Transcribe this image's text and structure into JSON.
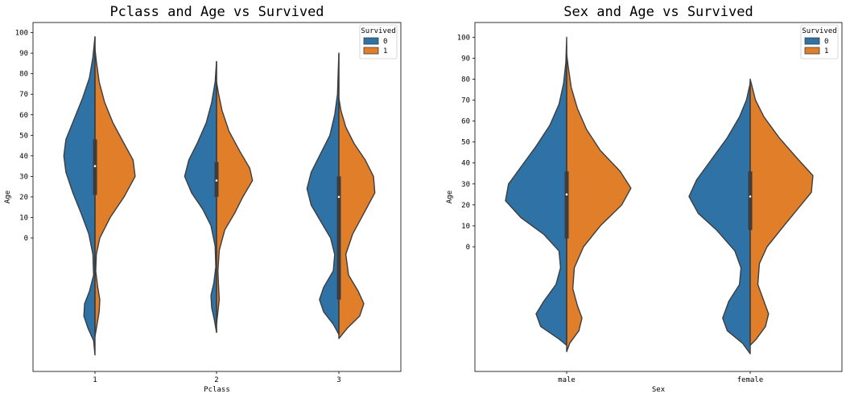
{
  "chart_data": [
    {
      "type": "violin",
      "title": "Pclass and Age  vs  Survived",
      "xlabel": "Pclass",
      "ylabel": "Age",
      "categories": [
        "1",
        "2",
        "3"
      ],
      "yticks": [
        0,
        10,
        20,
        30,
        40,
        50,
        60,
        70,
        80,
        90,
        100
      ],
      "ylim": [
        -65,
        102
      ],
      "split": true,
      "legend": {
        "title": "Survived",
        "entries": [
          "0",
          "1"
        ],
        "position": "top-right"
      },
      "series": [
        {
          "name": "0",
          "color": "#2f73a6",
          "violins": [
            {
              "points": [
                [
                  -57,
                  0.0
                ],
                [
                  -50,
                  0.02
                ],
                [
                  -44,
                  0.1
                ],
                [
                  -38,
                  0.16
                ],
                [
                  -32,
                  0.15
                ],
                [
                  -26,
                  0.08
                ],
                [
                  -18,
                  0.02
                ],
                [
                  -8,
                  0.03
                ],
                [
                  2,
                  0.09
                ],
                [
                  12,
                  0.2
                ],
                [
                  22,
                  0.32
                ],
                [
                  32,
                  0.42
                ],
                [
                  40,
                  0.45
                ],
                [
                  48,
                  0.42
                ],
                [
                  58,
                  0.3
                ],
                [
                  68,
                  0.18
                ],
                [
                  78,
                  0.08
                ],
                [
                  88,
                  0.03
                ],
                [
                  98,
                  0.0
                ]
              ]
            },
            {
              "points": [
                [
                  -46,
                  0.0
                ],
                [
                  -40,
                  0.03
                ],
                [
                  -34,
                  0.07
                ],
                [
                  -28,
                  0.08
                ],
                [
                  -22,
                  0.04
                ],
                [
                  -14,
                  0.01
                ],
                [
                  -4,
                  0.02
                ],
                [
                  6,
                  0.08
                ],
                [
                  14,
                  0.2
                ],
                [
                  22,
                  0.36
                ],
                [
                  30,
                  0.46
                ],
                [
                  38,
                  0.4
                ],
                [
                  46,
                  0.28
                ],
                [
                  56,
                  0.15
                ],
                [
                  66,
                  0.07
                ],
                [
                  76,
                  0.02
                ],
                [
                  86,
                  0.0
                ]
              ]
            },
            {
              "points": [
                [
                  -47,
                  0.0
                ],
                [
                  -42,
                  0.08
                ],
                [
                  -36,
                  0.22
                ],
                [
                  -30,
                  0.28
                ],
                [
                  -24,
                  0.22
                ],
                [
                  -16,
                  0.08
                ],
                [
                  -8,
                  0.06
                ],
                [
                  0,
                  0.12
                ],
                [
                  8,
                  0.26
                ],
                [
                  16,
                  0.4
                ],
                [
                  24,
                  0.46
                ],
                [
                  32,
                  0.4
                ],
                [
                  40,
                  0.28
                ],
                [
                  50,
                  0.13
                ],
                [
                  60,
                  0.06
                ],
                [
                  70,
                  0.02
                ],
                [
                  80,
                  0.01
                ],
                [
                  90,
                  0.0
                ]
              ]
            }
          ]
        },
        {
          "name": "1",
          "color": "#e07e2a",
          "violins": [
            {
              "points": [
                [
                  -48,
                  0.0
                ],
                [
                  -42,
                  0.03
                ],
                [
                  -36,
                  0.06
                ],
                [
                  -30,
                  0.07
                ],
                [
                  -24,
                  0.04
                ],
                [
                  -16,
                  0.01
                ],
                [
                  -8,
                  0.02
                ],
                [
                  0,
                  0.07
                ],
                [
                  10,
                  0.22
                ],
                [
                  20,
                  0.42
                ],
                [
                  30,
                  0.58
                ],
                [
                  38,
                  0.55
                ],
                [
                  46,
                  0.42
                ],
                [
                  56,
                  0.26
                ],
                [
                  66,
                  0.14
                ],
                [
                  76,
                  0.06
                ],
                [
                  86,
                  0.02
                ],
                [
                  92,
                  0.0
                ]
              ]
            },
            {
              "points": [
                [
                  -42,
                  0.0
                ],
                [
                  -36,
                  0.02
                ],
                [
                  -30,
                  0.04
                ],
                [
                  -24,
                  0.03
                ],
                [
                  -16,
                  0.02
                ],
                [
                  -6,
                  0.04
                ],
                [
                  4,
                  0.12
                ],
                [
                  12,
                  0.26
                ],
                [
                  20,
                  0.38
                ],
                [
                  28,
                  0.52
                ],
                [
                  34,
                  0.48
                ],
                [
                  42,
                  0.34
                ],
                [
                  52,
                  0.18
                ],
                [
                  62,
                  0.08
                ],
                [
                  70,
                  0.03
                ],
                [
                  76,
                  0.0
                ]
              ]
            },
            {
              "points": [
                [
                  -49,
                  0.0
                ],
                [
                  -44,
                  0.12
                ],
                [
                  -38,
                  0.3
                ],
                [
                  -32,
                  0.36
                ],
                [
                  -26,
                  0.28
                ],
                [
                  -18,
                  0.14
                ],
                [
                  -8,
                  0.1
                ],
                [
                  2,
                  0.2
                ],
                [
                  12,
                  0.36
                ],
                [
                  22,
                  0.52
                ],
                [
                  30,
                  0.5
                ],
                [
                  38,
                  0.38
                ],
                [
                  46,
                  0.22
                ],
                [
                  54,
                  0.1
                ],
                [
                  62,
                  0.03
                ],
                [
                  68,
                  0.0
                ]
              ]
            }
          ]
        }
      ],
      "box": [
        {
          "q1": 21,
          "median": 35,
          "q3": 48,
          "wlow": -44,
          "whigh": 98
        },
        {
          "q1": 20,
          "median": 28,
          "q3": 37,
          "wlow": -46,
          "whigh": 86
        },
        {
          "q1": -30,
          "median": 20,
          "q3": 30,
          "wlow": -47,
          "whigh": 90
        }
      ]
    },
    {
      "type": "violin",
      "title": "Sex and Age  vs  Survived",
      "xlabel": "Sex",
      "ylabel": "Age",
      "categories": [
        "male",
        "female"
      ],
      "yticks": [
        0,
        10,
        20,
        30,
        40,
        50,
        60,
        70,
        80,
        90,
        100
      ],
      "ylim": [
        -59,
        105
      ],
      "split": true,
      "legend": {
        "title": "Survived",
        "entries": [
          "0",
          "1"
        ],
        "position": "top-right"
      },
      "series": [
        {
          "name": "0",
          "color": "#2f73a6",
          "violins": [
            {
              "points": [
                [
                  -47,
                  0.0
                ],
                [
                  -44,
                  0.1
                ],
                [
                  -38,
                  0.34
                ],
                [
                  -32,
                  0.4
                ],
                [
                  -26,
                  0.3
                ],
                [
                  -18,
                  0.14
                ],
                [
                  -10,
                  0.08
                ],
                [
                  -2,
                  0.1
                ],
                [
                  6,
                  0.3
                ],
                [
                  14,
                  0.6
                ],
                [
                  22,
                  0.8
                ],
                [
                  30,
                  0.76
                ],
                [
                  38,
                  0.6
                ],
                [
                  48,
                  0.4
                ],
                [
                  58,
                  0.22
                ],
                [
                  68,
                  0.1
                ],
                [
                  78,
                  0.04
                ],
                [
                  88,
                  0.01
                ],
                [
                  100,
                  0.0
                ]
              ]
            },
            {
              "points": [
                [
                  -51,
                  0.0
                ],
                [
                  -46,
                  0.1
                ],
                [
                  -40,
                  0.3
                ],
                [
                  -34,
                  0.36
                ],
                [
                  -26,
                  0.28
                ],
                [
                  -18,
                  0.14
                ],
                [
                  -10,
                  0.12
                ],
                [
                  -2,
                  0.2
                ],
                [
                  8,
                  0.44
                ],
                [
                  16,
                  0.68
                ],
                [
                  24,
                  0.8
                ],
                [
                  32,
                  0.7
                ],
                [
                  42,
                  0.5
                ],
                [
                  52,
                  0.3
                ],
                [
                  62,
                  0.14
                ],
                [
                  70,
                  0.05
                ],
                [
                  78,
                  0.0
                ]
              ]
            }
          ]
        },
        {
          "name": "1",
          "color": "#e07e2a",
          "violins": [
            {
              "points": [
                [
                  -50,
                  0.0
                ],
                [
                  -46,
                  0.04
                ],
                [
                  -40,
                  0.16
                ],
                [
                  -34,
                  0.2
                ],
                [
                  -28,
                  0.14
                ],
                [
                  -20,
                  0.08
                ],
                [
                  -10,
                  0.1
                ],
                [
                  0,
                  0.22
                ],
                [
                  10,
                  0.44
                ],
                [
                  20,
                  0.72
                ],
                [
                  28,
                  0.84
                ],
                [
                  36,
                  0.7
                ],
                [
                  46,
                  0.44
                ],
                [
                  56,
                  0.26
                ],
                [
                  66,
                  0.14
                ],
                [
                  76,
                  0.06
                ],
                [
                  86,
                  0.02
                ],
                [
                  92,
                  0.0
                ]
              ]
            },
            {
              "points": [
                [
                  -47,
                  0.0
                ],
                [
                  -44,
                  0.08
                ],
                [
                  -38,
                  0.2
                ],
                [
                  -32,
                  0.24
                ],
                [
                  -26,
                  0.18
                ],
                [
                  -18,
                  0.1
                ],
                [
                  -8,
                  0.12
                ],
                [
                  0,
                  0.22
                ],
                [
                  10,
                  0.44
                ],
                [
                  18,
                  0.62
                ],
                [
                  26,
                  0.8
                ],
                [
                  34,
                  0.82
                ],
                [
                  42,
                  0.62
                ],
                [
                  52,
                  0.38
                ],
                [
                  62,
                  0.18
                ],
                [
                  70,
                  0.07
                ],
                [
                  80,
                  0.0
                ]
              ]
            }
          ]
        }
      ],
      "box": [
        {
          "q1": 4,
          "median": 25,
          "q3": 36,
          "wlow": -44,
          "whigh": 96
        },
        {
          "q1": 8,
          "median": 24,
          "q3": 36,
          "wlow": -45,
          "whigh": 79
        }
      ]
    }
  ]
}
